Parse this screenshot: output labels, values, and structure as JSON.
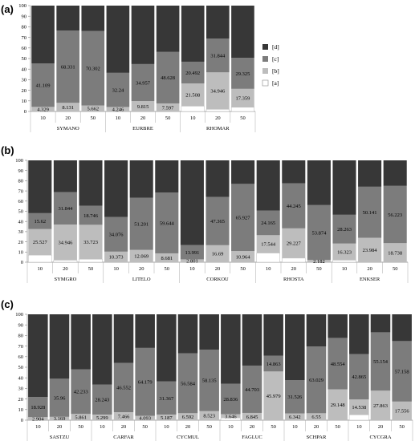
{
  "colors": {
    "a": "#ffffff",
    "b": "#bdbdbd",
    "c": "#7c7c7c",
    "d": "#373737"
  },
  "chart_data": [
    {
      "type": "bar",
      "stacked": true,
      "panel": "(a)",
      "ylim": [
        0,
        100
      ],
      "yticks": [
        "0",
        "10",
        "20",
        "30",
        "40",
        "50",
        "60",
        "70",
        "80",
        "90",
        "100"
      ],
      "legend": [
        "[d]",
        "[c]",
        "[b]",
        "[a]"
      ],
      "legend_position": "right",
      "groups": [
        {
          "name": "SYMANO",
          "bars": [
            {
              "x": "10",
              "a": 0,
              "b": 4.329,
              "c": 41.109,
              "d": 54.562,
              "labels": {
                "b": "4.329",
                "c": "41.109"
              }
            },
            {
              "x": "20",
              "a": 0,
              "b": 8.131,
              "c": 68.331,
              "d": 23.538,
              "labels": {
                "b": "8.131",
                "c": "68.331"
              }
            },
            {
              "x": "50",
              "a": 0,
              "b": 5.662,
              "c": 70.302,
              "d": 24.036,
              "labels": {
                "b": "5.662",
                "c": "70.302"
              }
            }
          ]
        },
        {
          "name": "EURBRE",
          "bars": [
            {
              "x": "10",
              "a": 0,
              "b": 4.246,
              "c": 32.24,
              "d": 63.514,
              "labels": {
                "b": "4.246",
                "c": "32.24"
              }
            },
            {
              "x": "20",
              "a": 0,
              "b": 9.815,
              "c": 34.957,
              "d": 55.228,
              "labels": {
                "b": "9.815",
                "c": "34.957"
              }
            },
            {
              "x": "50",
              "a": 0,
              "b": 7.597,
              "c": 48.628,
              "d": 43.775,
              "labels": {
                "b": "7.597",
                "c": "48.628"
              }
            }
          ]
        },
        {
          "name": "RHOMAR",
          "bars": [
            {
              "x": "10",
              "a": 5,
              "b": 21.508,
              "c": 20.492,
              "d": 53,
              "labels": {
                "b": "21.508",
                "c": "20.492"
              }
            },
            {
              "x": "20",
              "a": 2,
              "b": 34.946,
              "c": 31.844,
              "d": 31.21,
              "labels": {
                "b": "34.946",
                "c": "31.844"
              }
            },
            {
              "x": "50",
              "a": 4,
              "b": 17.359,
              "c": 29.325,
              "d": 49.316,
              "labels": {
                "b": "17.359",
                "c": "29.325"
              }
            }
          ]
        }
      ]
    },
    {
      "type": "bar",
      "stacked": true,
      "panel": "(b)",
      "ylim": [
        0,
        100
      ],
      "yticks": [
        "0",
        "10",
        "20",
        "30",
        "40",
        "50",
        "60",
        "70",
        "80",
        "90",
        "100"
      ],
      "groups": [
        {
          "name": "SYMGRO",
          "bars": [
            {
              "x": "10",
              "a": 7,
              "b": 25.527,
              "c": 15.62,
              "d": 51.853,
              "labels": {
                "b": "25.527",
                "c": "15.62"
              }
            },
            {
              "x": "20",
              "a": 2,
              "b": 34.946,
              "c": 31.844,
              "d": 31.21,
              "labels": {
                "b": "34.946",
                "c": "31.844"
              }
            },
            {
              "x": "50",
              "a": 3,
              "b": 33.723,
              "c": 18.746,
              "d": 44.531,
              "labels": {
                "b": "33.723",
                "c": "18.746"
              }
            }
          ]
        },
        {
          "name": "LITELO",
          "bars": [
            {
              "x": "10",
              "a": 0,
              "b": 10.373,
              "c": 34.076,
              "d": 55.551,
              "labels": {
                "b": "10.373",
                "c": "34.076"
              }
            },
            {
              "x": "20",
              "a": 0,
              "b": 12.069,
              "c": 51.201,
              "d": 36.73,
              "labels": {
                "b": "12.069",
                "c": "51.201"
              }
            },
            {
              "x": "50",
              "a": 0,
              "b": 8.681,
              "c": 59.644,
              "d": 31.675,
              "labels": {
                "b": "8.681",
                "c": "59.644"
              }
            }
          ]
        },
        {
          "name": "CORKOU",
          "bars": [
            {
              "x": "10",
              "a": 0,
              "b": 2.801,
              "c": 13.991,
              "d": 83.208,
              "labels": {
                "b": "2.801",
                "c": "13.991"
              }
            },
            {
              "x": "20",
              "a": 0,
              "b": 16.69,
              "c": 47.365,
              "d": 35.945,
              "labels": {
                "b": "16.69",
                "c": "47.365"
              }
            },
            {
              "x": "50",
              "a": 0,
              "b": 10.964,
              "c": 65.927,
              "d": 23.109,
              "labels": {
                "b": "10.964",
                "c": "65.927"
              }
            }
          ]
        },
        {
          "name": "RHOSTA",
          "bars": [
            {
              "x": "10",
              "a": 9,
              "b": 17.544,
              "c": 24.165,
              "d": 49.291,
              "labels": {
                "b": "17.544",
                "c": "24.165"
              }
            },
            {
              "x": "20",
              "a": 4,
              "b": 29.227,
              "c": 44.245,
              "d": 22.528,
              "labels": {
                "b": "29.227",
                "c": "44.245"
              }
            },
            {
              "x": "50",
              "a": 0,
              "b": 2.182,
              "c": 53.874,
              "d": 43.944,
              "labels": {
                "b": "2.182",
                "c": "53.874"
              }
            }
          ]
        },
        {
          "name": "ENKSER",
          "bars": [
            {
              "x": "10",
              "a": 2,
              "b": 16.323,
              "c": 28.263,
              "d": 53.414,
              "labels": {
                "b": "16.323",
                "c": "28.263"
              }
            },
            {
              "x": "20",
              "a": 0,
              "b": 23.984,
              "c": 50.141,
              "d": 25.875,
              "labels": {
                "b": "23.984",
                "c": "50.141"
              }
            },
            {
              "x": "50",
              "a": 0,
              "b": 18.738,
              "c": 56.223,
              "d": 25.039,
              "labels": {
                "b": "18.738",
                "c": "56.223"
              }
            }
          ]
        }
      ]
    },
    {
      "type": "bar",
      "stacked": true,
      "panel": "(c)",
      "ylim": [
        0,
        100
      ],
      "yticks": [
        "0",
        "10",
        "20",
        "30",
        "40",
        "50",
        "60",
        "70",
        "80",
        "90",
        "100"
      ],
      "groups": [
        {
          "name": "SASTZU",
          "bars": [
            {
              "x": "10",
              "a": 0,
              "b": 2.904,
              "c": 18.928,
              "d": 78.168,
              "labels": {
                "b": "2.904",
                "c": "18.928"
              }
            },
            {
              "x": "20",
              "a": 0,
              "b": 3.169,
              "c": 35.96,
              "d": 60.871,
              "labels": {
                "b": "3.169",
                "c": "35.96"
              }
            },
            {
              "x": "50",
              "a": 0,
              "b": 5.861,
              "c": 42.233,
              "d": 51.906,
              "labels": {
                "b": "5.861",
                "c": "42.233"
              }
            }
          ]
        },
        {
          "name": "CARFAR",
          "bars": [
            {
              "x": "10",
              "a": 0,
              "b": 5.299,
              "c": 28.243,
              "d": 66.458,
              "labels": {
                "b": "5.299",
                "c": "28.243"
              }
            },
            {
              "x": "20",
              "a": 0,
              "b": 7.466,
              "c": 46.552,
              "d": 45.982,
              "labels": {
                "b": "7.466",
                "c": "46.552"
              }
            },
            {
              "x": "50",
              "a": 0,
              "b": 4.093,
              "c": 64.179,
              "d": 31.728,
              "labels": {
                "b": "4.093",
                "c": "64.179"
              }
            }
          ]
        },
        {
          "name": "CYCMUL",
          "bars": [
            {
              "x": "10",
              "a": 0,
              "b": 5.187,
              "c": 31.367,
              "d": 63.446,
              "labels": {
                "b": "5.187",
                "c": "31.367"
              }
            },
            {
              "x": "20",
              "a": 0,
              "b": 6.592,
              "c": 56.584,
              "d": 36.824,
              "labels": {
                "b": "6.592",
                "c": "56.584"
              }
            },
            {
              "x": "50",
              "a": 0,
              "b": 8.523,
              "c": 58.135,
              "d": 33.342,
              "labels": {
                "b": "8.523",
                "c": "58.135"
              }
            }
          ]
        },
        {
          "name": "FAGLUC",
          "bars": [
            {
              "x": "10",
              "a": 2,
              "b": 3.646,
              "c": 28.836,
              "d": 65.518,
              "labels": {
                "b": "3.646",
                "c": "28.836"
              }
            },
            {
              "x": "20",
              "a": 0,
              "b": 6.845,
              "c": 44.703,
              "d": 48.452,
              "labels": {
                "b": "6.845",
                "c": "44.703"
              }
            },
            {
              "x": "50",
              "a": 0,
              "b": 45.979,
              "c": 14.863,
              "d": 39.158,
              "labels": {
                "b": "45.979",
                "c": "14.863"
              }
            }
          ]
        },
        {
          "name": "SCHPAR",
          "bars": [
            {
              "x": "10",
              "a": 0,
              "b": 6.342,
              "c": 31.526,
              "d": 62.132,
              "labels": {
                "b": "6.342",
                "c": "31.526"
              }
            },
            {
              "x": "20",
              "a": 0,
              "b": 6.55,
              "c": 63.029,
              "d": 30.421,
              "labels": {
                "b": "6.55",
                "c": "63.029"
              }
            },
            {
              "x": "50",
              "a": 0,
              "b": 29.148,
              "c": 48.554,
              "d": 22.298,
              "labels": {
                "b": "29.148",
                "c": "48.554"
              }
            }
          ]
        },
        {
          "name": "CYCGRA",
          "bars": [
            {
              "x": "10",
              "a": 5,
              "b": 14.538,
              "c": 42.865,
              "d": 37.597,
              "labels": {
                "b": "14.538",
                "c": "42.865"
              }
            },
            {
              "x": "20",
              "a": 0,
              "b": 27.863,
              "c": 55.154,
              "d": 16.983,
              "labels": {
                "b": "27.863",
                "c": "55.154"
              }
            },
            {
              "x": "50",
              "a": 0,
              "b": 17.556,
              "c": 57.158,
              "d": 25.286,
              "labels": {
                "b": "17.556",
                "c": "57.158"
              }
            }
          ]
        }
      ]
    }
  ]
}
